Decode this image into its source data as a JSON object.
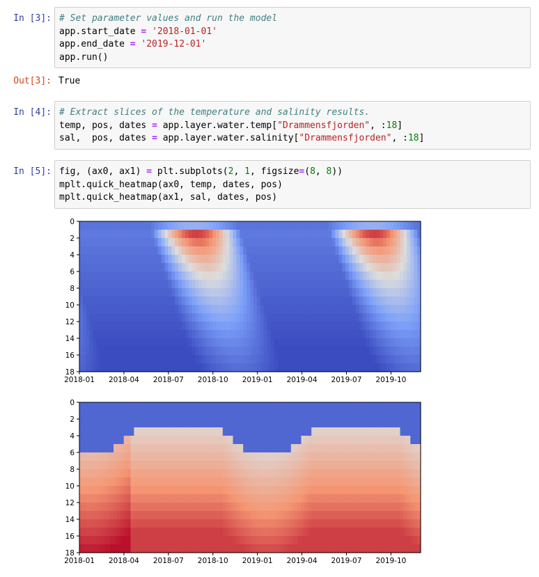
{
  "cells": [
    {
      "prompt": "In [3]:",
      "lines": [
        [
          {
            "t": "# Set parameter values and run the model",
            "c": "cm"
          }
        ],
        [
          {
            "t": "app.start_date ",
            "c": ""
          },
          {
            "t": "=",
            "c": "op"
          },
          {
            "t": " ",
            "c": ""
          },
          {
            "t": "'2018-01-01'",
            "c": "str"
          }
        ],
        [
          {
            "t": "app.end_date ",
            "c": ""
          },
          {
            "t": "=",
            "c": "op"
          },
          {
            "t": " ",
            "c": ""
          },
          {
            "t": "'2019-12-01'",
            "c": "str"
          }
        ],
        [
          {
            "t": "app.run()",
            "c": ""
          }
        ]
      ]
    },
    {
      "prompt": "In [4]:",
      "lines": [
        [
          {
            "t": "# Extract slices of the temperature and salinity results.",
            "c": "cm"
          }
        ],
        [
          {
            "t": "temp, pos, dates ",
            "c": ""
          },
          {
            "t": "=",
            "c": "op"
          },
          {
            "t": " app.layer.water.temp[",
            "c": ""
          },
          {
            "t": "\"Drammensfjorden\"",
            "c": "str"
          },
          {
            "t": ", :",
            "c": ""
          },
          {
            "t": "18",
            "c": "num"
          },
          {
            "t": "]",
            "c": ""
          }
        ],
        [
          {
            "t": "sal,  pos, dates ",
            "c": ""
          },
          {
            "t": "=",
            "c": "op"
          },
          {
            "t": " app.layer.water.salinity[",
            "c": ""
          },
          {
            "t": "\"Drammensfjorden\"",
            "c": "str"
          },
          {
            "t": ", :",
            "c": ""
          },
          {
            "t": "18",
            "c": "num"
          },
          {
            "t": "]",
            "c": ""
          }
        ]
      ]
    },
    {
      "prompt": "In [5]:",
      "lines": [
        [
          {
            "t": "fig, (ax0, ax1) ",
            "c": ""
          },
          {
            "t": "=",
            "c": "op"
          },
          {
            "t": " plt.subplots(",
            "c": ""
          },
          {
            "t": "2",
            "c": "num"
          },
          {
            "t": ", ",
            "c": ""
          },
          {
            "t": "1",
            "c": "num"
          },
          {
            "t": ", figsize",
            "c": ""
          },
          {
            "t": "=",
            "c": "op"
          },
          {
            "t": "(",
            "c": ""
          },
          {
            "t": "8",
            "c": "num"
          },
          {
            "t": ", ",
            "c": ""
          },
          {
            "t": "8",
            "c": "num"
          },
          {
            "t": "))",
            "c": ""
          }
        ],
        [
          {
            "t": "mplt.quick_heatmap(ax0, temp, dates, pos)",
            "c": ""
          }
        ],
        [
          {
            "t": "mplt.quick_heatmap(ax1, sal, dates, pos)",
            "c": ""
          }
        ]
      ]
    }
  ],
  "output_3": {
    "prompt": "Out[3]:",
    "text": "True"
  },
  "colors": {
    "prompt_in": "#303f9f",
    "prompt_out": "#d84315",
    "cell_bg": "#f7f7f7",
    "cell_border": "#cfcfcf"
  },
  "chart_data": [
    {
      "type": "heatmap",
      "colormap": "coolwarm",
      "x_ticks": [
        "2018-01",
        "2018-04",
        "2018-07",
        "2018-10",
        "2019-01",
        "2019-04",
        "2019-07",
        "2019-10"
      ],
      "y_ticks": [
        0,
        2,
        4,
        6,
        8,
        10,
        12,
        14,
        16,
        18
      ],
      "xlim": [
        "2018-01-01",
        "2019-12-01"
      ],
      "ylim": [
        18,
        0
      ],
      "description_values": "depth rows 0-18, monthly columns; cold (blue) winters, warm (red) summer near surface"
    },
    {
      "type": "heatmap",
      "colormap": "coolwarm",
      "x_ticks": [
        "2018-01",
        "2018-04",
        "2018-07",
        "2018-10",
        "2019-01",
        "2019-04",
        "2019-07",
        "2019-10"
      ],
      "y_ticks": [
        0,
        2,
        4,
        6,
        8,
        10,
        12,
        14,
        16,
        18
      ],
      "xlim": [
        "2018-01-01",
        "2019-12-01"
      ],
      "ylim": [
        18,
        0
      ]
    }
  ]
}
